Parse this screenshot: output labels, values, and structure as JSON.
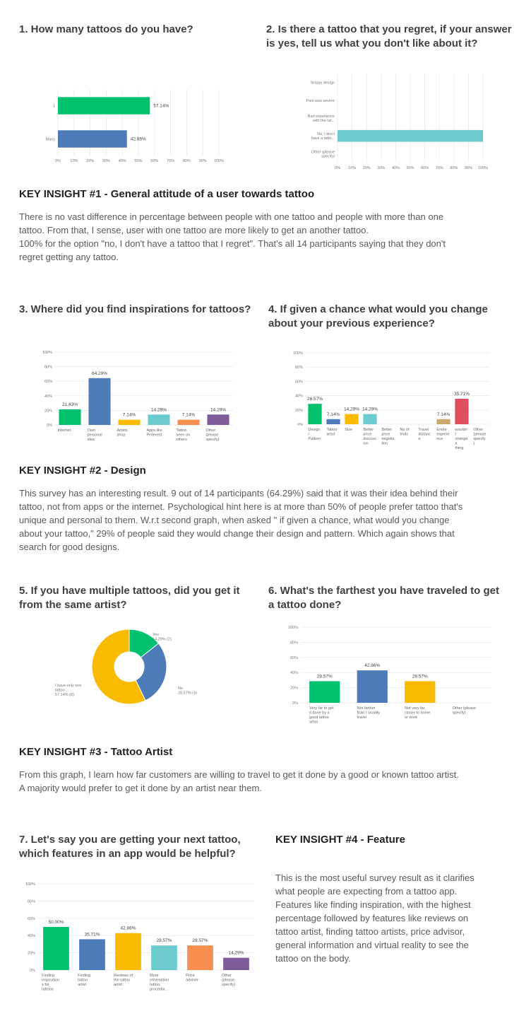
{
  "q1": {
    "title": "1. How many tattoos do you have?"
  },
  "q2": {
    "title": "2. Is there a tattoo that you regret, if your answer is yes, tell us what you don't like about it?"
  },
  "q3": {
    "title": "3. Where did you find inspirations for tattoos?"
  },
  "q4": {
    "title": "4. If given a chance what would you change about your previous experience?"
  },
  "q5": {
    "title": "5. If you have multiple tattoos, did you get it from the same artist?"
  },
  "q6": {
    "title": "6. What's the farthest you have traveled to get a tattoo done?"
  },
  "q7": {
    "title": "7. Let's say you are getting your next tattoo, which features in an app would be helpful?"
  },
  "insight1": {
    "title": "KEY INSIGHT #1 - General attitude of a user towards tattoo",
    "lines": [
      "There is no vast difference in percentage between people with one tattoo and people with more than one",
      "tattoo. From that, I sense, user with one tattoo are more likely to get an another tattoo.",
      "100% for the option \"no, I don't have a tattoo that I regret\". That's all 14 participants saying that they don't",
      "regret getting any tattoo."
    ]
  },
  "insight2": {
    "title": "KEY INSIGHT #2 - Design",
    "lines": [
      "This survey has an interesting result. 9 out of 14 participants (64.29%) said that it was their idea behind their",
      "tattoo, not from apps or the internet. Psychological hint here is at more than 50% of people prefer tattoo that's",
      "unique and personal to them. W.r.t second graph, when asked \" if given a chance, what would you change",
      "about your tattoo,\" 29% of people said they would change their design and pattern. Which again shows that",
      "search for good designs."
    ]
  },
  "insight3": {
    "title": "KEY INSIGHT #3 - Tattoo Artist",
    "lines": [
      "From this graph, I learn how far customers are willing to travel to get it done by a good or known tattoo artist.",
      "A majority would prefer to get it done by an artist near them."
    ]
  },
  "insight4": {
    "title": "KEY INSIGHT #4 - Feature",
    "lines": [
      "This is the most useful survey result as it clarifies",
      "what people are expecting from a tattoo app.",
      "Features like finding inspiration, with the highest",
      "percentage followed by features like reviews on",
      "tattoo artist, finding tattoo artists, price advisor,",
      "general information and virtual reality to see the",
      "tattoo on the body."
    ]
  },
  "chart_data": [
    {
      "type": "bar",
      "orientation": "horizontal",
      "categories": [
        "1",
        "Many"
      ],
      "values": [
        57.14,
        42.86
      ],
      "data_labels": [
        "57.14%",
        "42.86%"
      ],
      "colors": [
        "#00c16e",
        "#4d7cb8"
      ],
      "xticks": [
        "0%",
        "10%",
        "20%",
        "30%",
        "40%",
        "50%",
        "60%",
        "70%",
        "80%",
        "90%",
        "100%"
      ],
      "xlim": [
        0,
        100
      ]
    },
    {
      "type": "bar",
      "orientation": "horizontal",
      "categories": [
        [
          "Sloppy design"
        ],
        [
          "Pain was severe"
        ],
        [
          "Bad experience",
          "with the tat..."
        ],
        [
          "No, I don't",
          "have a tatto..."
        ],
        [
          "Other (please",
          "specify)"
        ]
      ],
      "values": [
        0,
        0,
        0,
        100,
        0
      ],
      "colors": [
        "#00c16e",
        "#4d7cb8",
        "#f8bb00",
        "#6ccbcf",
        "#f88e50"
      ],
      "xticks": [
        "0%",
        "10%",
        "20%",
        "30%",
        "40%",
        "50%",
        "60%",
        "70%",
        "80%",
        "90%",
        "100%"
      ],
      "xlim": [
        0,
        100
      ]
    },
    {
      "type": "bar",
      "categories": [
        [
          "Internet"
        ],
        [
          "Own",
          "personal",
          "idea"
        ],
        [
          "Artists",
          "shop"
        ],
        [
          "Apps like",
          "Pinterest"
        ],
        [
          "Tattoo",
          "seen on",
          "others"
        ],
        [
          "Other",
          "(please",
          "specify)"
        ]
      ],
      "values": [
        21.43,
        64.29,
        7.14,
        14.29,
        7.14,
        14.29
      ],
      "data_labels": [
        "21.43%",
        "64.29%",
        "7.14%",
        "14.29%",
        "7.14%",
        "14.29%"
      ],
      "colors": [
        "#00c16e",
        "#4d7cb8",
        "#f8bb00",
        "#6ccbcf",
        "#f88e50",
        "#7e5b9a"
      ],
      "yticks": [
        "0%",
        "20%",
        "40%",
        "60%",
        "80%",
        "100%"
      ],
      "ylim": [
        0,
        100
      ]
    },
    {
      "type": "bar",
      "categories": [
        [
          "Design",
          "/",
          "Pattern"
        ],
        [
          "Tattoo",
          "artist"
        ],
        [
          "Size"
        ],
        [
          "Better",
          "price",
          "discuss",
          "ion"
        ],
        [
          "Better",
          "price",
          "negotia",
          "tion"
        ],
        [
          "No of",
          "trials"
        ],
        [
          "Travel",
          "distanc",
          "e"
        ],
        [
          "Entire",
          "experie",
          "nce"
        ],
        [
          "wouldn'",
          "t",
          "change",
          "a",
          "thing"
        ],
        [
          "Other",
          "(please",
          "specify",
          ")"
        ]
      ],
      "values": [
        28.57,
        7.14,
        14.29,
        14.29,
        0,
        0,
        0,
        7.14,
        35.71,
        0
      ],
      "data_labels": [
        "28.57%",
        "7.14%",
        "14.29%",
        "14.29%",
        "",
        "",
        "",
        "7.14%",
        "35.71%",
        ""
      ],
      "colors": [
        "#00c16e",
        "#4d7cb8",
        "#f8bb00",
        "#6ccbcf",
        "#f88e50",
        "#7e5b9a",
        "#4d7cb8",
        "#c9a96e",
        "#e04e5d",
        "#00c16e"
      ],
      "yticks": [
        "0%",
        "20%",
        "40%",
        "60%",
        "80%",
        "100%"
      ],
      "ylim": [
        0,
        100
      ]
    },
    {
      "type": "pie",
      "donut": true,
      "categories": [
        "Yes",
        "No",
        "I have only one tattoo"
      ],
      "values": [
        14.29,
        28.57,
        57.14
      ],
      "data_labels": [
        [
          "Yes",
          "14.29% (2)"
        ],
        [
          "No",
          "28.57% (4)"
        ],
        [
          "I have only one",
          "tattoo",
          "57.14% (8)"
        ]
      ],
      "colors": [
        "#00c16e",
        "#4d7cb8",
        "#f8bb00"
      ]
    },
    {
      "type": "bar",
      "categories": [
        [
          "Very far to get",
          "it done by a",
          "good tattoo",
          "artist"
        ],
        [
          "Not farther",
          "than I usually",
          "travel"
        ],
        [
          "Not very far,",
          "closer to home",
          "or work"
        ],
        [
          "Other (please",
          "specify)"
        ]
      ],
      "values": [
        28.57,
        42.86,
        28.57,
        0
      ],
      "data_labels": [
        "28.57%",
        "42.86%",
        "28.57%",
        ""
      ],
      "colors": [
        "#00c16e",
        "#4d7cb8",
        "#f8bb00",
        "#6ccbcf"
      ],
      "yticks": [
        "0%",
        "20%",
        "40%",
        "60%",
        "80%",
        "100%"
      ],
      "ylim": [
        0,
        100
      ]
    },
    {
      "type": "bar",
      "categories": [
        [
          "Finding",
          "inspiration",
          "s for",
          "tattoos"
        ],
        [
          "Finding",
          "tattoo",
          "artist"
        ],
        [
          "Reviews of",
          "the tattoo",
          "artist"
        ],
        [
          "More",
          "information",
          "tattoo,",
          "procedur..."
        ],
        [
          "Price",
          "adviser"
        ],
        [
          "Other",
          "(please",
          "specify)"
        ]
      ],
      "values": [
        50.0,
        35.71,
        42.86,
        28.57,
        28.57,
        14.29
      ],
      "data_labels": [
        "50.00%",
        "35.71%",
        "42.86%",
        "28.57%",
        "28.57%",
        "14.29%"
      ],
      "colors": [
        "#00c16e",
        "#4d7cb8",
        "#f8bb00",
        "#6ccbcf",
        "#f88e50",
        "#7e5b9a"
      ],
      "yticks": [
        "0%",
        "20%",
        "40%",
        "60%",
        "80%",
        "100%"
      ],
      "ylim": [
        0,
        100
      ]
    }
  ]
}
